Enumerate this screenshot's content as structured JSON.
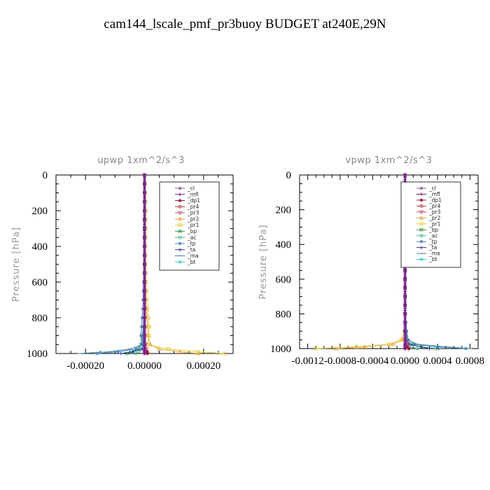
{
  "title": "cam144_lscale_pmf_pr3buoy  BUDGET at240E,29N",
  "legend": [
    {
      "label": "_cl",
      "color": "#7f5ab8",
      "marker": "star"
    },
    {
      "label": "_mfl",
      "color": "#7d1aa0",
      "marker": "plus"
    },
    {
      "label": "_dp1",
      "color": "#b01030",
      "marker": "dot"
    },
    {
      "label": "_pr4",
      "color": "#e03030",
      "marker": "circle"
    },
    {
      "label": "_pr3",
      "color": "#e04a60",
      "marker": "tri-down"
    },
    {
      "label": "_pr2",
      "color": "#f0a030",
      "marker": "tri-up"
    },
    {
      "label": "_pr1",
      "color": "#f0d020",
      "marker": "square"
    },
    {
      "label": "_bp",
      "color": "#20a040",
      "marker": "x"
    },
    {
      "label": "_ac",
      "color": "#40c080",
      "marker": "circle"
    },
    {
      "label": "_tp",
      "color": "#3a7fd0",
      "marker": "star"
    },
    {
      "label": "_ta",
      "color": "#3030c0",
      "marker": "plus"
    },
    {
      "label": "_ma",
      "color": "#3090b0",
      "marker": "dash"
    },
    {
      "label": "_bt",
      "color": "#10e0e0",
      "marker": "diamond"
    }
  ],
  "chart_data": [
    {
      "type": "line",
      "title": "upwp  1xm^2/s^3",
      "ylabel": "Pressure [hPa]",
      "xlabel": "",
      "xlim": [
        -0.0003,
        0.0003
      ],
      "ylim": [
        1000,
        0
      ],
      "xticks": [
        -0.0002,
        0.0,
        0.0002
      ],
      "xtick_labels": [
        "-0.00020",
        "0.00000",
        "0.00020"
      ],
      "yticks": [
        0,
        200,
        400,
        600,
        800,
        1000
      ],
      "ytick_labels": [
        "0",
        "200",
        "400",
        "600",
        "800",
        "1000"
      ],
      "pressure": [
        0,
        50,
        100,
        150,
        200,
        250,
        300,
        350,
        400,
        450,
        500,
        550,
        600,
        650,
        700,
        750,
        800,
        850,
        900,
        950,
        975,
        990,
        1000
      ],
      "series": [
        {
          "name": "_cl",
          "values": [
            0,
            0,
            0,
            0,
            0,
            0,
            0,
            0,
            0,
            0,
            0,
            0,
            0,
            0,
            0,
            0,
            0,
            0,
            0,
            0,
            0,
            0,
            0
          ]
        },
        {
          "name": "_mfl",
          "values": [
            0,
            0,
            0,
            0,
            0,
            0,
            0,
            0,
            0,
            0,
            0,
            0,
            0,
            0,
            0,
            0,
            0,
            0,
            0,
            0,
            0,
            0,
            0
          ]
        },
        {
          "name": "_dp1",
          "values": [
            0,
            0,
            0,
            0,
            0,
            0,
            0,
            0,
            0,
            0,
            0,
            0,
            0,
            0,
            0,
            0,
            0,
            0,
            0,
            0,
            2e-06,
            8e-06,
            1e-05
          ]
        },
        {
          "name": "_pr4",
          "values": [
            0,
            0,
            0,
            0,
            0,
            0,
            0,
            0,
            0,
            0,
            0,
            0,
            0,
            0,
            0,
            0,
            0,
            0,
            0,
            0,
            0,
            0,
            0
          ]
        },
        {
          "name": "_pr3",
          "values": [
            0,
            0,
            0,
            0,
            0,
            0,
            0,
            0,
            0,
            0,
            0,
            0,
            0,
            0,
            0,
            0,
            0,
            0,
            2e-06,
            4e-06,
            6e-06,
            8e-06,
            1e-05
          ]
        },
        {
          "name": "_pr2",
          "values": [
            0,
            0,
            0,
            0,
            0,
            0,
            0,
            0,
            0,
            1e-06,
            1e-06,
            2e-06,
            2e-06,
            3e-06,
            4e-06,
            6e-06,
            8e-06,
            1e-05,
            1.2e-05,
            2e-05,
            5e-05,
            0.00012,
            0.00018
          ]
        },
        {
          "name": "_pr1",
          "values": [
            0,
            2e-06,
            3e-06,
            4e-06,
            5e-06,
            5e-06,
            5e-06,
            4e-06,
            4e-06,
            4e-06,
            4e-06,
            5e-06,
            6e-06,
            7e-06,
            8e-06,
            1e-05,
            1.2e-05,
            1.6e-05,
            1.5e-05,
            1e-05,
            8e-05,
            0.00018,
            0.00027
          ]
        },
        {
          "name": "_bp",
          "values": [
            0,
            0,
            0,
            0,
            0,
            0,
            0,
            0,
            0,
            0,
            0,
            0,
            0,
            0,
            0,
            0,
            -2e-06,
            -4e-06,
            -8e-06,
            -1.2e-05,
            -2e-05,
            -4e-05,
            -6e-05
          ]
        },
        {
          "name": "_ac",
          "values": [
            0,
            0,
            0,
            0,
            0,
            0,
            0,
            0,
            0,
            0,
            0,
            0,
            0,
            0,
            0,
            0,
            0,
            -2e-06,
            -4e-06,
            -6e-06,
            -1e-05,
            -2e-05,
            -3e-05
          ]
        },
        {
          "name": "_tp",
          "values": [
            0,
            0,
            0,
            0,
            0,
            0,
            0,
            0,
            -1e-06,
            -1e-06,
            -2e-06,
            -2e-06,
            -3e-06,
            -4e-06,
            -5e-06,
            -6e-06,
            -8e-06,
            -1e-05,
            -1.2e-05,
            -1e-05,
            -3e-05,
            -9e-05,
            -0.00016
          ]
        },
        {
          "name": "_ta",
          "values": [
            0,
            0,
            0,
            0,
            0,
            0,
            0,
            0,
            0,
            0,
            0,
            0,
            0,
            0,
            0,
            0,
            0,
            0,
            -2e-06,
            -4e-06,
            -8e-06,
            -4e-05,
            -8e-05
          ]
        },
        {
          "name": "_ma",
          "values": [
            0,
            0,
            0,
            0,
            0,
            0,
            0,
            0,
            0,
            0,
            0,
            0,
            0,
            0,
            0,
            0,
            -2e-06,
            -4e-06,
            -6e-06,
            -8e-06,
            -5e-05,
            -0.00012,
            -0.00022
          ]
        },
        {
          "name": "_bt",
          "values": [
            0,
            0,
            0,
            0,
            0,
            0,
            0,
            0,
            0,
            0,
            0,
            0,
            0,
            0,
            0,
            0,
            0,
            0,
            0,
            0,
            0,
            0,
            0
          ]
        }
      ]
    },
    {
      "type": "line",
      "title": "vpwp  1xm^2/s^3",
      "ylabel": "Pressure [hPa]",
      "xlabel": "",
      "xlim": [
        -0.0013,
        0.0009
      ],
      "ylim": [
        1000,
        0
      ],
      "xticks": [
        -0.0012,
        -0.0008,
        -0.0004,
        0.0,
        0.0004,
        0.0008
      ],
      "xtick_labels": [
        "-0.0012",
        "-0.0008",
        "-0.0004",
        "0.0000",
        "0.0004",
        "0.0008"
      ],
      "yticks": [
        0,
        200,
        400,
        600,
        800,
        1000
      ],
      "ytick_labels": [
        "0",
        "200",
        "400",
        "600",
        "800",
        "1000"
      ],
      "pressure": [
        0,
        50,
        100,
        150,
        200,
        250,
        300,
        350,
        400,
        450,
        500,
        550,
        600,
        650,
        700,
        750,
        800,
        850,
        900,
        950,
        975,
        990,
        1000
      ],
      "series": [
        {
          "name": "_cl",
          "values": [
            0,
            0,
            0,
            0,
            0,
            0,
            0,
            0,
            0,
            0,
            0,
            0,
            0,
            0,
            0,
            0,
            0,
            0,
            0,
            0,
            0,
            0,
            0
          ]
        },
        {
          "name": "_mfl",
          "values": [
            0,
            0,
            0,
            0,
            0,
            0,
            0,
            0,
            0,
            0,
            0,
            0,
            0,
            0,
            0,
            0,
            0,
            0,
            0,
            0,
            0,
            0,
            0
          ]
        },
        {
          "name": "_dp1",
          "values": [
            0,
            0,
            0,
            0,
            0,
            0,
            0,
            0,
            0,
            0,
            0,
            0,
            0,
            0,
            0,
            0,
            0,
            0,
            0,
            0,
            1e-05,
            3e-05,
            5e-05
          ]
        },
        {
          "name": "_pr4",
          "values": [
            0,
            0,
            0,
            0,
            0,
            0,
            0,
            0,
            0,
            0,
            0,
            0,
            0,
            0,
            0,
            0,
            0,
            0,
            0,
            0,
            0,
            0,
            0
          ]
        },
        {
          "name": "_pr3",
          "values": [
            0,
            0,
            0,
            0,
            0,
            0,
            0,
            0,
            0,
            0,
            0,
            0,
            0,
            0,
            0,
            0,
            0,
            0,
            0,
            1e-05,
            2e-05,
            3e-05,
            4e-05
          ]
        },
        {
          "name": "_pr2",
          "values": [
            0,
            0,
            0,
            0,
            0,
            0,
            0,
            0,
            0,
            0,
            0,
            0,
            0,
            0,
            0,
            0,
            0,
            0,
            0,
            -3e-05,
            -0.00015,
            -0.0005,
            -0.00085
          ]
        },
        {
          "name": "_pr1",
          "values": [
            0,
            0,
            0,
            0,
            0,
            0,
            0,
            0,
            0,
            0,
            0,
            0,
            0,
            0,
            0,
            0,
            0,
            0,
            -1e-05,
            -5e-05,
            -0.0002,
            -0.0006,
            -0.0011
          ]
        },
        {
          "name": "_bp",
          "values": [
            0,
            0,
            0,
            0,
            0,
            0,
            0,
            0,
            0,
            0,
            0,
            0,
            0,
            0,
            0,
            0,
            0,
            0,
            5e-06,
            2e-05,
            8e-05,
            0.0002,
            0.0004
          ]
        },
        {
          "name": "_ac",
          "values": [
            0,
            0,
            0,
            0,
            0,
            0,
            0,
            0,
            0,
            0,
            0,
            0,
            0,
            0,
            0,
            0,
            0,
            0,
            0,
            1e-05,
            3e-05,
            8e-05,
            0.00015
          ]
        },
        {
          "name": "_tp",
          "values": [
            0,
            0,
            0,
            0,
            0,
            0,
            0,
            0,
            0,
            0,
            0,
            0,
            0,
            0,
            0,
            0,
            5e-06,
            1e-05,
            2e-05,
            4e-05,
            0.00012,
            0.0004,
            0.00075
          ]
        },
        {
          "name": "_ta",
          "values": [
            0,
            0,
            0,
            0,
            0,
            0,
            0,
            0,
            0,
            0,
            0,
            0,
            0,
            0,
            0,
            0,
            0,
            0,
            5e-06,
            1e-05,
            5e-05,
            0.0002,
            0.0003
          ]
        },
        {
          "name": "_ma",
          "values": [
            0,
            0,
            0,
            0,
            0,
            0,
            0,
            0,
            0,
            0,
            0,
            0,
            0,
            0,
            0,
            0,
            0,
            5e-06,
            1e-05,
            3e-05,
            0.00015,
            0.0005,
            0.0008
          ]
        },
        {
          "name": "_bt",
          "values": [
            0,
            0,
            0,
            0,
            0,
            0,
            0,
            0,
            0,
            0,
            0,
            0,
            0,
            0,
            0,
            0,
            0,
            0,
            0,
            0,
            0,
            0,
            0
          ]
        }
      ]
    }
  ]
}
